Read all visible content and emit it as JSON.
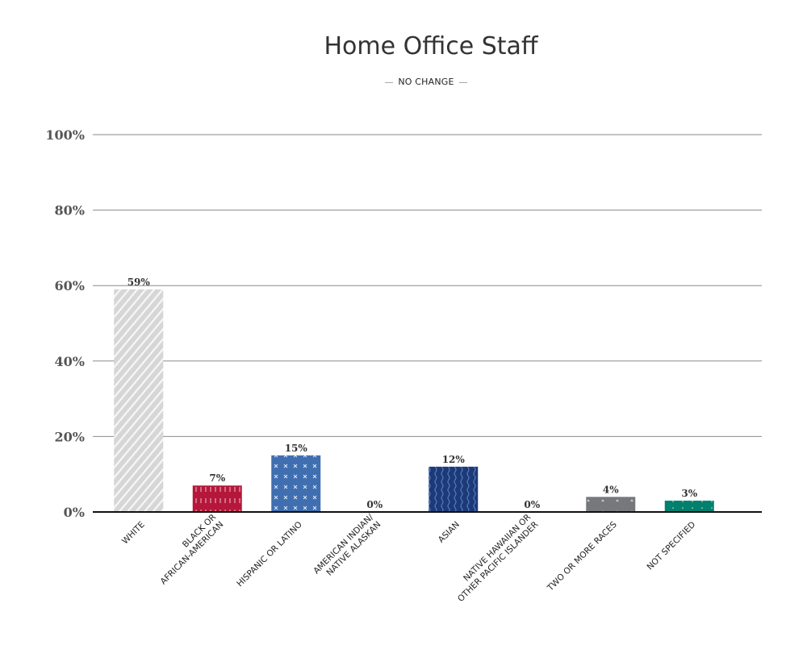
{
  "chart_data": {
    "type": "bar",
    "title": "Home Office Staff",
    "legend": [
      {
        "label": "NO CHANGE"
      }
    ],
    "legend_position": "top-center",
    "categories": [
      [
        "WHITE"
      ],
      [
        "BLACK OR",
        "AFRICAN-AMERICAN"
      ],
      [
        "HISPANIC OR LATINO"
      ],
      [
        "AMERICAN INDIAN/",
        "NATIVE ALASKAN"
      ],
      [
        "ASIAN"
      ],
      [
        "NATIVE HAWAIIAN OR",
        "OTHER PACIFIC ISLANDER"
      ],
      [
        "TWO OR MORE RACES"
      ],
      [
        "NOT SPECIFIED"
      ]
    ],
    "values": [
      59,
      7,
      15,
      0,
      12,
      0,
      4,
      3
    ],
    "value_labels": [
      "59%",
      "7%",
      "15%",
      "0%",
      "12%",
      "0%",
      "4%",
      "3%"
    ],
    "bar_colors": [
      "#d6d6d6",
      "#b5173a",
      "#3f6fb0",
      "#ffffff",
      "#1d3a78",
      "#ffffff",
      "#76787b",
      "#00806e"
    ],
    "bar_patterns": [
      "diagonal",
      "dashes",
      "crosses",
      "none",
      "waves",
      "none",
      "triangles",
      "dots"
    ],
    "ylim": [
      0,
      100
    ],
    "yticks": [
      0,
      20,
      40,
      60,
      80,
      100
    ],
    "ytick_labels": [
      "0%",
      "20%",
      "40%",
      "60%",
      "80%",
      "100%"
    ],
    "grid": true,
    "xlabel": "",
    "ylabel": ""
  }
}
